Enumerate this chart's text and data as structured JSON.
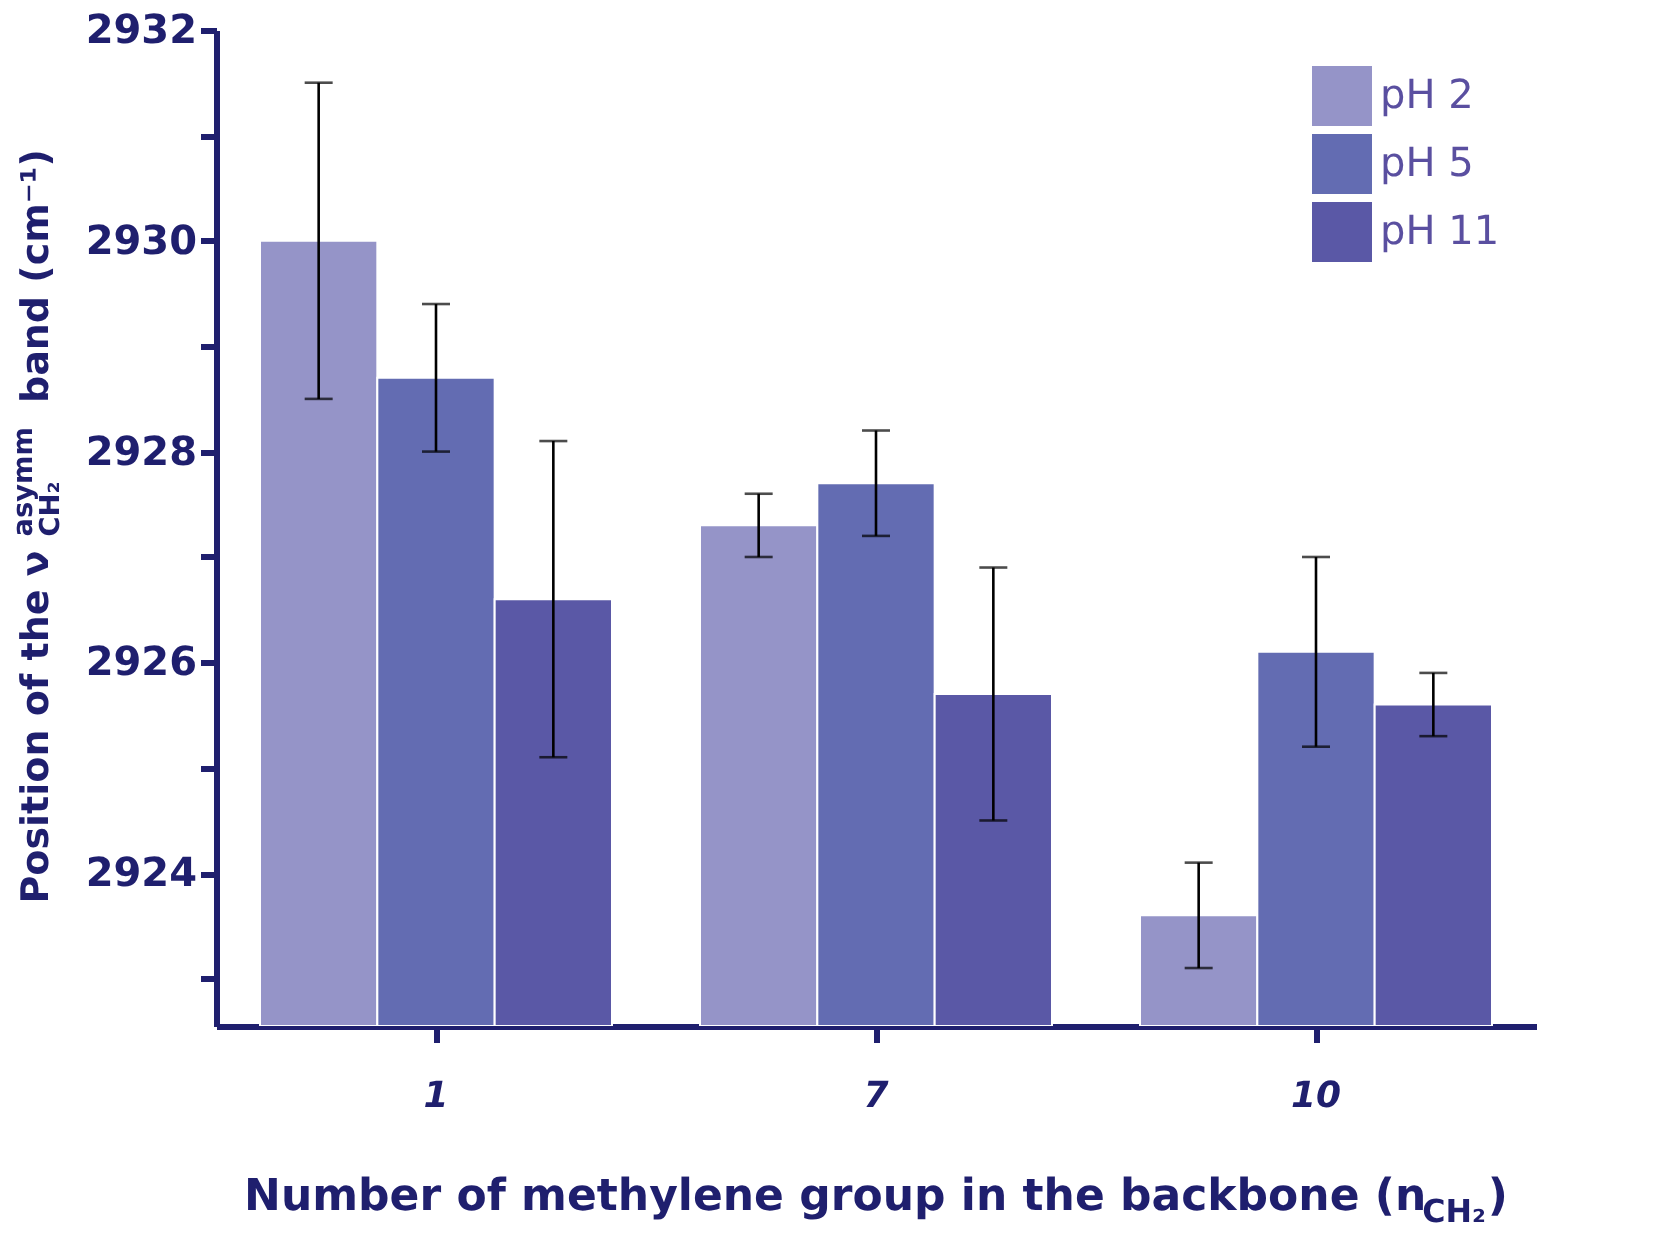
{
  "chart_data": {
    "type": "bar",
    "xlabel": "Number of methylene group in the backbone (n$_{CH₂}$)",
    "ylabel": "Position of the ν$_{CH₂}$$^{asymm}$ band (cm⁻¹)",
    "categories": [
      "1",
      "7",
      "10"
    ],
    "series": [
      {
        "name": "pH 2",
        "color": "#9594c8",
        "values": [
          2930.0,
          2927.3,
          2923.6
        ],
        "errors": [
          1.5,
          0.3,
          0.5
        ]
      },
      {
        "name": "pH 5",
        "color": "#636cb2",
        "values": [
          2928.7,
          2927.7,
          2926.1
        ],
        "errors": [
          0.7,
          0.5,
          0.9
        ]
      },
      {
        "name": "pH 11",
        "color": "#5a58a6",
        "values": [
          2926.6,
          2925.7,
          2925.6
        ],
        "errors": [
          1.5,
          1.2,
          0.3
        ]
      }
    ],
    "ylim": [
      2922.55,
      2932
    ],
    "yticks": [
      {
        "value": 2923,
        "label": null
      },
      2924,
      {
        "value": 2925,
        "label": null
      },
      2926,
      {
        "value": 2927,
        "label": null
      },
      2928,
      {
        "value": 2929,
        "label": null
      },
      2930,
      {
        "value": 2931,
        "label": null
      },
      2932
    ],
    "grid": false,
    "legend": "top right"
  }
}
